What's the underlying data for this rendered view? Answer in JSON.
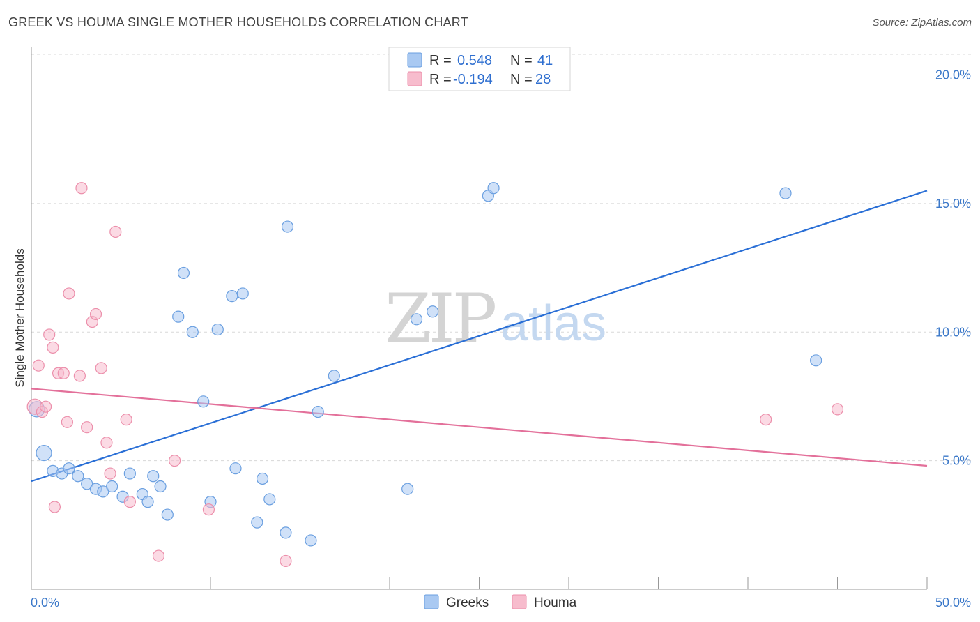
{
  "title": "GREEK VS HOUMA SINGLE MOTHER HOUSEHOLDS CORRELATION CHART",
  "source": "Source: ZipAtlas.com",
  "colors": {
    "greeks_fill": "#a9c9f2",
    "greeks_stroke": "#6a9fe0",
    "greeks_line": "#2a6fd6",
    "houma_fill": "#f7bccd",
    "houma_stroke": "#ec8fab",
    "houma_line": "#e3709a",
    "grid": "#d8d8d8",
    "axis_text": "#3b78c9"
  },
  "legend": {
    "r_label": "R =",
    "n_label": "N =",
    "greeks": {
      "r": "0.548",
      "n": "41"
    },
    "houma": {
      "r": "-0.194",
      "n": "28"
    }
  },
  "watermark": {
    "zip": "ZIP",
    "atlas": "atlas"
  },
  "chart_data": {
    "type": "scatter",
    "title": "GREEK VS HOUMA SINGLE MOTHER HOUSEHOLDS CORRELATION CHART",
    "xlabel": "",
    "ylabel": "Single Mother Households",
    "xlim": [
      0,
      50
    ],
    "ylim": [
      0,
      20.8
    ],
    "x_tick_labels": [
      "0.0%",
      "50.0%"
    ],
    "y_ticks": [
      5,
      10,
      15,
      20
    ],
    "y_tick_labels": [
      "5.0%",
      "10.0%",
      "15.0%",
      "20.0%"
    ],
    "legend_position": "top-center",
    "series": [
      {
        "name": "Greeks",
        "r": 0.548,
        "n": 41,
        "trend": {
          "x": [
            0,
            50
          ],
          "y": [
            4.2,
            15.5
          ]
        },
        "points": [
          {
            "x": 0.3,
            "y": 7.0,
            "big": true
          },
          {
            "x": 0.7,
            "y": 5.3,
            "big": true
          },
          {
            "x": 1.2,
            "y": 4.6
          },
          {
            "x": 1.7,
            "y": 4.5
          },
          {
            "x": 2.1,
            "y": 4.7
          },
          {
            "x": 2.6,
            "y": 4.4
          },
          {
            "x": 3.1,
            "y": 4.1
          },
          {
            "x": 3.6,
            "y": 3.9
          },
          {
            "x": 4.0,
            "y": 3.8
          },
          {
            "x": 4.5,
            "y": 4.0
          },
          {
            "x": 5.1,
            "y": 3.6
          },
          {
            "x": 5.5,
            "y": 4.5
          },
          {
            "x": 6.2,
            "y": 3.7
          },
          {
            "x": 6.5,
            "y": 3.4
          },
          {
            "x": 6.8,
            "y": 4.4
          },
          {
            "x": 7.2,
            "y": 4.0
          },
          {
            "x": 7.6,
            "y": 2.9
          },
          {
            "x": 8.2,
            "y": 10.6
          },
          {
            "x": 8.5,
            "y": 12.3
          },
          {
            "x": 9.0,
            "y": 10.0
          },
          {
            "x": 9.6,
            "y": 7.3
          },
          {
            "x": 10.0,
            "y": 3.4
          },
          {
            "x": 10.4,
            "y": 10.1
          },
          {
            "x": 11.2,
            "y": 11.4
          },
          {
            "x": 11.4,
            "y": 4.7
          },
          {
            "x": 11.8,
            "y": 11.5
          },
          {
            "x": 12.6,
            "y": 2.6
          },
          {
            "x": 12.9,
            "y": 4.3
          },
          {
            "x": 13.3,
            "y": 3.5
          },
          {
            "x": 14.2,
            "y": 2.2
          },
          {
            "x": 14.3,
            "y": 14.1
          },
          {
            "x": 15.6,
            "y": 1.9
          },
          {
            "x": 16.0,
            "y": 6.9
          },
          {
            "x": 16.9,
            "y": 8.3
          },
          {
            "x": 21.0,
            "y": 3.9
          },
          {
            "x": 21.5,
            "y": 10.5
          },
          {
            "x": 22.4,
            "y": 10.8
          },
          {
            "x": 25.5,
            "y": 15.3
          },
          {
            "x": 25.8,
            "y": 15.6
          },
          {
            "x": 42.1,
            "y": 15.4
          },
          {
            "x": 43.8,
            "y": 8.9
          }
        ]
      },
      {
        "name": "Houma",
        "r": -0.194,
        "n": 28,
        "trend": {
          "x": [
            0,
            50
          ],
          "y": [
            7.8,
            4.8
          ]
        },
        "points": [
          {
            "x": 0.2,
            "y": 7.1,
            "big": true
          },
          {
            "x": 0.4,
            "y": 8.7
          },
          {
            "x": 0.6,
            "y": 6.9
          },
          {
            "x": 0.8,
            "y": 7.1
          },
          {
            "x": 1.0,
            "y": 9.9
          },
          {
            "x": 1.2,
            "y": 9.4
          },
          {
            "x": 1.3,
            "y": 3.2
          },
          {
            "x": 1.5,
            "y": 8.4
          },
          {
            "x": 1.8,
            "y": 8.4
          },
          {
            "x": 2.0,
            "y": 6.5
          },
          {
            "x": 2.1,
            "y": 11.5
          },
          {
            "x": 2.7,
            "y": 8.3
          },
          {
            "x": 2.8,
            "y": 15.6
          },
          {
            "x": 3.1,
            "y": 6.3
          },
          {
            "x": 3.4,
            "y": 10.4
          },
          {
            "x": 3.6,
            "y": 10.7
          },
          {
            "x": 3.9,
            "y": 8.6
          },
          {
            "x": 4.2,
            "y": 5.7
          },
          {
            "x": 4.4,
            "y": 4.5
          },
          {
            "x": 4.7,
            "y": 13.9
          },
          {
            "x": 5.3,
            "y": 6.6
          },
          {
            "x": 5.5,
            "y": 3.4
          },
          {
            "x": 7.1,
            "y": 1.3
          },
          {
            "x": 8.0,
            "y": 5.0
          },
          {
            "x": 9.9,
            "y": 3.1
          },
          {
            "x": 14.2,
            "y": 1.1
          },
          {
            "x": 41.0,
            "y": 6.6
          },
          {
            "x": 45.0,
            "y": 7.0
          }
        ]
      }
    ]
  }
}
